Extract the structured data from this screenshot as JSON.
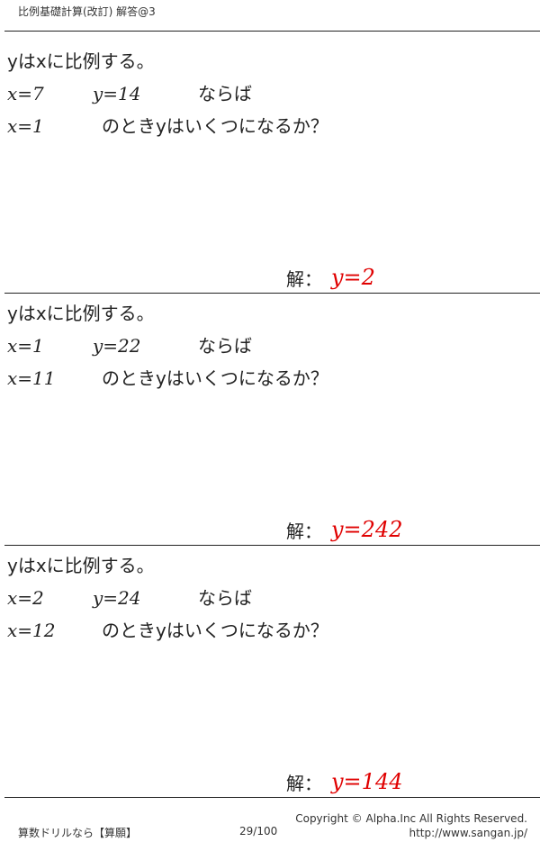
{
  "header": {
    "title": "比例基礎計算(改訂) 解答@3"
  },
  "problems": [
    {
      "statement": "yはxに比例する。",
      "given_x": "x=7",
      "given_y": "y=14",
      "condition": "ならば",
      "query_x": "x=1",
      "question": "のときyはいくつになるか？",
      "answer_label": "解：",
      "answer": "y=2"
    },
    {
      "statement": "yはxに比例する。",
      "given_x": "x=1",
      "given_y": "y=22",
      "condition": "ならば",
      "query_x": "x=11",
      "question": "のときyはいくつになるか？",
      "answer_label": "解：",
      "answer": "y=242"
    },
    {
      "statement": "yはxに比例する。",
      "given_x": "x=2",
      "given_y": "y=24",
      "condition": "ならば",
      "query_x": "x=12",
      "question": "のときyはいくつになるか？",
      "answer_label": "解：",
      "answer": "y=144"
    }
  ],
  "footer": {
    "left": "算数ドリルなら【算願】",
    "page": "29/100",
    "copyright": "Copyright ©  Alpha.Inc All Rights Reserved.",
    "url": "http://www.sangan.jp/"
  },
  "colors": {
    "answer": "#e00000"
  }
}
